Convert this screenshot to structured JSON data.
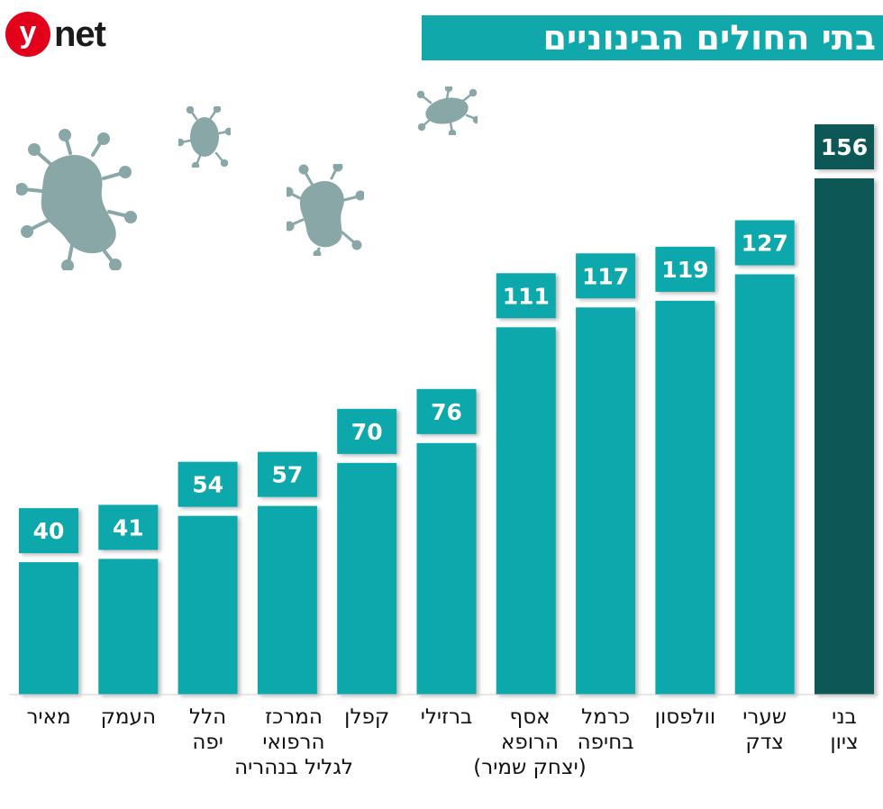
{
  "logo": {
    "letter": "y",
    "text": "net"
  },
  "header": {
    "title": "בתי החולים הבינוניים"
  },
  "icons": {
    "decor": "virus-icon"
  },
  "colors": {
    "bar": "#11a8ab",
    "bar_highlight": "#075856",
    "title_bg": "#11a8ab",
    "logo_red": "#e2001a",
    "virus": "#8aa7a8"
  },
  "chart_data": {
    "type": "bar",
    "title": "בתי החולים הבינוניים",
    "categories": [
      "מאיר",
      "העמק",
      "הלל\nיפה",
      "המרכז\nהרפואי\nלגליל בנהריה",
      "קפלן",
      "ברזילי",
      "אסף\nהרופא\n(יצחק שמיר)",
      "כרמל\nבחיפה",
      "וולפסון",
      "שערי\nצדק",
      "בני\nציון"
    ],
    "values": [
      40,
      41,
      54,
      57,
      70,
      76,
      111,
      117,
      119,
      127,
      156
    ],
    "highlight_index": 10,
    "ylim": [
      0,
      156
    ],
    "grid": false,
    "legend": "none"
  }
}
